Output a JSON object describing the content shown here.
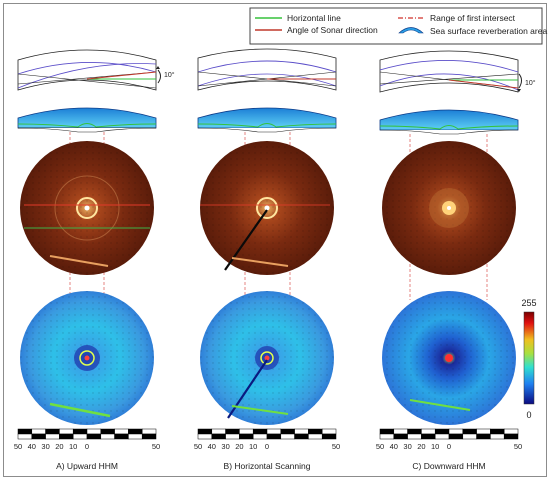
{
  "legend": {
    "horizontal_line": "Horizontal line",
    "angle_of_sonar": "Angle of Sonar direction",
    "range_first_intersect": "Range of first intersect",
    "sea_surface_area": "Sea surface reverberation area",
    "colors": {
      "horizontal": "#36c23c",
      "sonar": "#c0392b",
      "range": "#d9534f",
      "reverberation": "#2b9fe6"
    }
  },
  "tilt_label": "10°",
  "colorbar": {
    "max": "255",
    "min": "0"
  },
  "scale": {
    "ticks": [
      "50",
      "40",
      "30",
      "20",
      "10",
      "0",
      "50"
    ]
  },
  "panels": [
    {
      "caption": "A) Upward HHM"
    },
    {
      "caption": "B) Horizontal Scanning"
    },
    {
      "caption": "C) Downward HHM"
    }
  ]
}
